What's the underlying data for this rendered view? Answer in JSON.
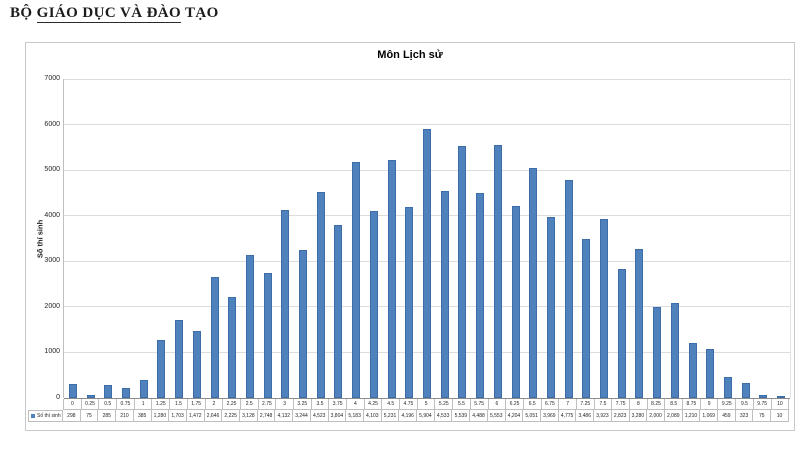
{
  "header": {
    "prefix": "BỘ ",
    "underlined": "GIÁO DỤC VÀ ĐÀO",
    "suffix": " TẠO"
  },
  "chart_data": {
    "type": "bar",
    "title": "Môn Lịch sử",
    "ylabel": "Số thí sinh",
    "legend": "Số thí sinh",
    "bar_color": "#4f81bd",
    "ylim": [
      0,
      7000
    ],
    "ytick_step": 1000,
    "grid": true,
    "categories": [
      "0",
      "0.25",
      "0.5",
      "0.75",
      "1",
      "1.25",
      "1.5",
      "1.75",
      "2",
      "2.25",
      "2.5",
      "2.75",
      "3",
      "3.25",
      "3.5",
      "3.75",
      "4",
      "4.25",
      "4.5",
      "4.75",
      "5",
      "5.25",
      "5.5",
      "5.75",
      "6",
      "6.25",
      "6.5",
      "6.75",
      "7",
      "7.25",
      "7.5",
      "7.75",
      "8",
      "8.25",
      "8.5",
      "8.75",
      "9",
      "9.25",
      "9.5",
      "9.75",
      "10"
    ],
    "values": [
      298,
      75,
      285,
      210,
      385,
      1280,
      1703,
      1472,
      2646,
      2225,
      3128,
      2748,
      4132,
      3244,
      4523,
      3804,
      5183,
      4103,
      5231,
      4196,
      5904,
      4533,
      5539,
      4488,
      5553,
      4204,
      5051,
      3969,
      4775,
      3486,
      3923,
      2823,
      3280,
      2000,
      2089,
      1210,
      1069,
      459,
      323,
      75,
      10
    ]
  }
}
